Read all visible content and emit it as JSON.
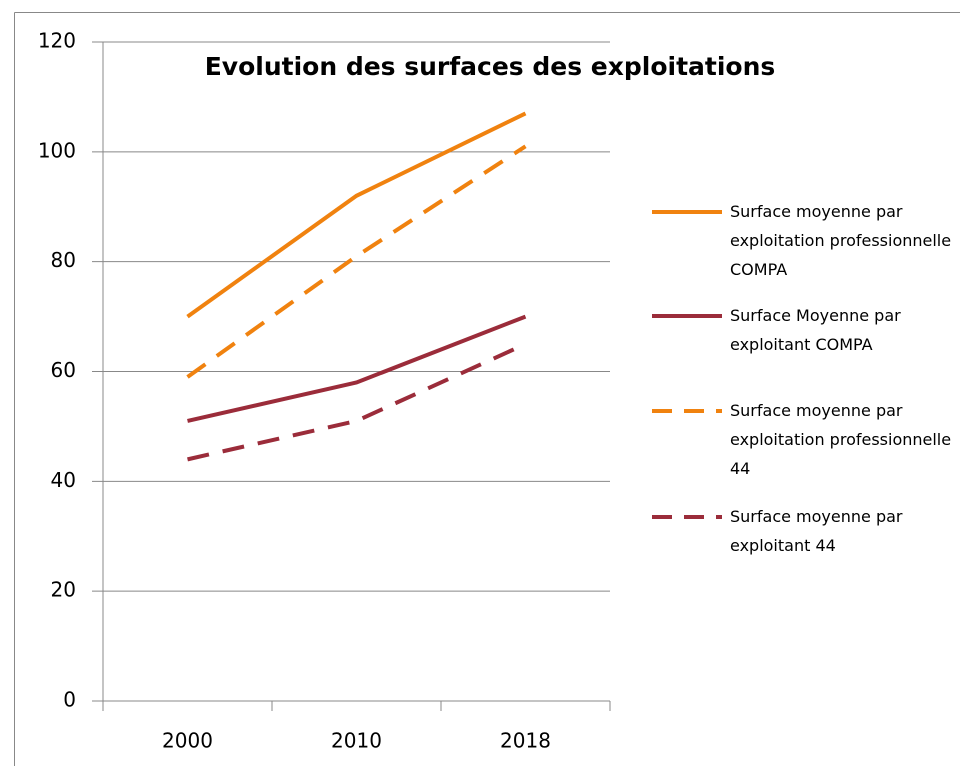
{
  "chart_data": {
    "type": "line",
    "title": "Evolution des surfaces des exploitations",
    "categories": [
      "2000",
      "2010",
      "2018"
    ],
    "series": [
      {
        "name": "Surface moyenne par exploitation professionnelle COMPA",
        "color": "#f0820f",
        "dash": false,
        "values": [
          70,
          92,
          107
        ]
      },
      {
        "name": "Surface Moyenne par exploitant COMPA",
        "color": "#9b2c3a",
        "dash": false,
        "values": [
          51,
          58,
          70
        ]
      },
      {
        "name": "Surface moyenne par exploitation professionnelle 44",
        "color": "#f0820f",
        "dash": true,
        "values": [
          59,
          81,
          101
        ]
      },
      {
        "name": "Surface moyenne par exploitant 44",
        "color": "#9b2c3a",
        "dash": true,
        "values": [
          44,
          51,
          65
        ]
      }
    ],
    "ylim": [
      0,
      120
    ],
    "yticks": [
      0,
      20,
      40,
      60,
      80,
      100,
      120
    ],
    "grid": true,
    "legend": "right"
  }
}
